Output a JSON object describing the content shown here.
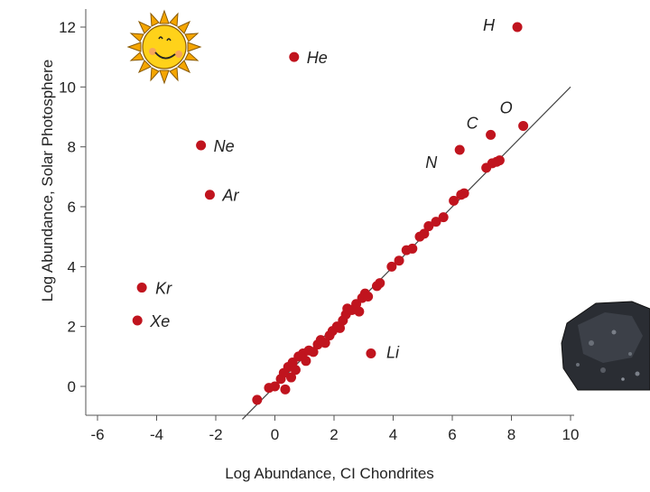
{
  "chart_data": {
    "type": "scatter",
    "title": "",
    "xlabel": "Log Abundance, CI Chondrites",
    "ylabel": "Log Abundance, Solar Photosphere",
    "xlim": [
      -6,
      10
    ],
    "ylim": [
      -1,
      12.5
    ],
    "xticks": [
      -6,
      -4,
      -2,
      0,
      2,
      4,
      6,
      8,
      10
    ],
    "yticks": [
      0,
      2,
      4,
      6,
      8,
      10,
      12
    ],
    "grid": false,
    "point_color": "#c0141e",
    "line_color": "#444444",
    "reference_line": {
      "x": [
        -1.1,
        10
      ],
      "y": [
        -1.1,
        10
      ]
    },
    "labeled_points": [
      {
        "label": "H",
        "x": 8.2,
        "y": 12.0
      },
      {
        "label": "He",
        "x": 0.65,
        "y": 11.0
      },
      {
        "label": "Ne",
        "x": -2.5,
        "y": 8.05
      },
      {
        "label": "Ar",
        "x": -2.2,
        "y": 6.4
      },
      {
        "label": "Kr",
        "x": -4.5,
        "y": 3.3
      },
      {
        "label": "Xe",
        "x": -4.65,
        "y": 2.2
      },
      {
        "label": "Li",
        "x": 3.25,
        "y": 1.1
      },
      {
        "label": "C",
        "x": 7.3,
        "y": 8.4
      },
      {
        "label": "O",
        "x": 8.4,
        "y": 8.7
      },
      {
        "label": "N",
        "x": 6.25,
        "y": 7.9
      }
    ],
    "points": [
      {
        "x": -0.6,
        "y": -0.45
      },
      {
        "x": -0.2,
        "y": -0.05
      },
      {
        "x": 0.0,
        "y": 0.0
      },
      {
        "x": 0.2,
        "y": 0.25
      },
      {
        "x": 0.3,
        "y": 0.45
      },
      {
        "x": 0.35,
        "y": -0.1
      },
      {
        "x": 0.45,
        "y": 0.65
      },
      {
        "x": 0.55,
        "y": 0.3
      },
      {
        "x": 0.6,
        "y": 0.8
      },
      {
        "x": 0.7,
        "y": 0.55
      },
      {
        "x": 0.8,
        "y": 1.0
      },
      {
        "x": 0.95,
        "y": 1.1
      },
      {
        "x": 1.05,
        "y": 0.85
      },
      {
        "x": 1.15,
        "y": 1.2
      },
      {
        "x": 1.3,
        "y": 1.15
      },
      {
        "x": 1.45,
        "y": 1.4
      },
      {
        "x": 1.55,
        "y": 1.55
      },
      {
        "x": 1.7,
        "y": 1.45
      },
      {
        "x": 1.85,
        "y": 1.7
      },
      {
        "x": 1.95,
        "y": 1.85
      },
      {
        "x": 2.1,
        "y": 2.0
      },
      {
        "x": 2.2,
        "y": 1.95
      },
      {
        "x": 2.3,
        "y": 2.2
      },
      {
        "x": 2.4,
        "y": 2.4
      },
      {
        "x": 2.45,
        "y": 2.6
      },
      {
        "x": 2.6,
        "y": 2.55
      },
      {
        "x": 2.75,
        "y": 2.75
      },
      {
        "x": 2.85,
        "y": 2.5
      },
      {
        "x": 2.95,
        "y": 2.95
      },
      {
        "x": 3.05,
        "y": 3.1
      },
      {
        "x": 3.15,
        "y": 3.0
      },
      {
        "x": 3.45,
        "y": 3.35
      },
      {
        "x": 3.55,
        "y": 3.45
      },
      {
        "x": 3.95,
        "y": 4.0
      },
      {
        "x": 4.2,
        "y": 4.2
      },
      {
        "x": 4.45,
        "y": 4.55
      },
      {
        "x": 4.65,
        "y": 4.6
      },
      {
        "x": 4.9,
        "y": 5.0
      },
      {
        "x": 5.05,
        "y": 5.1
      },
      {
        "x": 5.2,
        "y": 5.35
      },
      {
        "x": 5.45,
        "y": 5.5
      },
      {
        "x": 5.7,
        "y": 5.65
      },
      {
        "x": 6.05,
        "y": 6.2
      },
      {
        "x": 6.3,
        "y": 6.4
      },
      {
        "x": 6.4,
        "y": 6.45
      },
      {
        "x": 7.15,
        "y": 7.3
      },
      {
        "x": 7.35,
        "y": 7.45
      },
      {
        "x": 7.5,
        "y": 7.5
      },
      {
        "x": 7.6,
        "y": 7.55
      }
    ]
  },
  "decorations": {
    "sun_icon": "smiling-sun-icon",
    "meteorite_icon": "meteorite-rock-icon"
  }
}
